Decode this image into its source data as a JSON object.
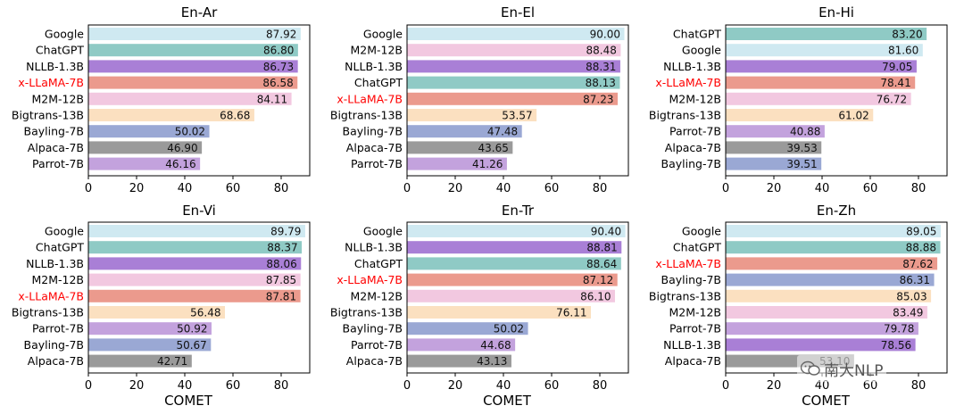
{
  "colors": {
    "Google": "#cfe9f1",
    "ChatGPT": "#8fcac5",
    "NLLB-1.3B": "#a97fd6",
    "x-LLaMA-7B": "#eb9a8d",
    "M2M-12B": "#f2c8e0",
    "Bigtrans-13B": "#fbe0c0",
    "Bayling-7B": "#9aa8d4",
    "Alpaca-7B": "#9a9a9a",
    "Parrot-7B": "#c3a2dd",
    "highlight_text": "#ff0000",
    "axis": "#000000"
  },
  "highlight_model": "x-LLaMA-7B",
  "watermark": {
    "text": "南大NLP",
    "icon": "wechat-icon"
  },
  "chart_data": [
    {
      "type": "bar",
      "orientation": "horizontal",
      "title": "En-Ar",
      "xlabel": "",
      "xlim": [
        0,
        90
      ],
      "xticks": [
        0,
        20,
        40,
        60,
        80
      ],
      "grid": false,
      "categories": [
        "Google",
        "ChatGPT",
        "NLLB-1.3B",
        "x-LLaMA-7B",
        "M2M-12B",
        "Bigtrans-13B",
        "Bayling-7B",
        "Alpaca-7B",
        "Parrot-7B"
      ],
      "values": [
        87.92,
        86.8,
        86.73,
        86.58,
        84.11,
        68.68,
        50.02,
        46.9,
        46.16
      ],
      "labels": [
        "87.92",
        "86.80",
        "86.73",
        "86.58",
        "84.11",
        "68.68",
        "50.02",
        "46.90",
        "46.16"
      ]
    },
    {
      "type": "bar",
      "orientation": "horizontal",
      "title": "En-El",
      "xlabel": "",
      "xlim": [
        0,
        90
      ],
      "xticks": [
        0,
        20,
        40,
        60,
        80
      ],
      "grid": false,
      "categories": [
        "Google",
        "M2M-12B",
        "NLLB-1.3B",
        "ChatGPT",
        "x-LLaMA-7B",
        "Bigtrans-13B",
        "Bayling-7B",
        "Alpaca-7B",
        "Parrot-7B"
      ],
      "values": [
        90.0,
        88.48,
        88.31,
        88.13,
        87.23,
        53.57,
        47.48,
        43.65,
        41.26
      ],
      "labels": [
        "90.00",
        "88.48",
        "88.31",
        "88.13",
        "87.23",
        "53.57",
        "47.48",
        "43.65",
        "41.26"
      ]
    },
    {
      "type": "bar",
      "orientation": "horizontal",
      "title": "En-Hi",
      "xlabel": "",
      "xlim": [
        0,
        90
      ],
      "xticks": [
        0,
        20,
        40,
        60,
        80
      ],
      "grid": false,
      "categories": [
        "ChatGPT",
        "Google",
        "NLLB-1.3B",
        "x-LLaMA-7B",
        "M2M-12B",
        "Bigtrans-13B",
        "Parrot-7B",
        "Alpaca-7B",
        "Bayling-7B"
      ],
      "values": [
        83.2,
        81.6,
        79.05,
        78.41,
        76.72,
        61.02,
        40.88,
        39.53,
        39.51
      ],
      "labels": [
        "83.20",
        "81.60",
        "79.05",
        "78.41",
        "76.72",
        "61.02",
        "40.88",
        "39.53",
        "39.51"
      ]
    },
    {
      "type": "bar",
      "orientation": "horizontal",
      "title": "En-Vi",
      "xlabel": "COMET",
      "xlim": [
        0,
        90
      ],
      "xticks": [
        0,
        20,
        40,
        60,
        80
      ],
      "grid": false,
      "categories": [
        "Google",
        "ChatGPT",
        "NLLB-1.3B",
        "M2M-12B",
        "x-LLaMA-7B",
        "Bigtrans-13B",
        "Parrot-7B",
        "Bayling-7B",
        "Alpaca-7B"
      ],
      "values": [
        89.79,
        88.37,
        88.06,
        87.85,
        87.81,
        56.48,
        50.92,
        50.67,
        42.71
      ],
      "labels": [
        "89.79",
        "88.37",
        "88.06",
        "87.85",
        "87.81",
        "56.48",
        "50.92",
        "50.67",
        "42.71"
      ]
    },
    {
      "type": "bar",
      "orientation": "horizontal",
      "title": "En-Tr",
      "xlabel": "COMET",
      "xlim": [
        0,
        90
      ],
      "xticks": [
        0,
        20,
        40,
        60,
        80
      ],
      "grid": false,
      "categories": [
        "Google",
        "NLLB-1.3B",
        "ChatGPT",
        "x-LLaMA-7B",
        "M2M-12B",
        "Bigtrans-13B",
        "Bayling-7B",
        "Parrot-7B",
        "Alpaca-7B"
      ],
      "values": [
        90.4,
        88.81,
        88.64,
        87.12,
        86.1,
        76.11,
        50.02,
        44.68,
        43.13
      ],
      "labels": [
        "90.40",
        "88.81",
        "88.64",
        "87.12",
        "86.10",
        "76.11",
        "50.02",
        "44.68",
        "43.13"
      ]
    },
    {
      "type": "bar",
      "orientation": "horizontal",
      "title": "En-Zh",
      "xlabel": "COMET",
      "xlim": [
        0,
        90
      ],
      "xticks": [
        0,
        20,
        40,
        60,
        80
      ],
      "grid": false,
      "categories": [
        "Google",
        "ChatGPT",
        "x-LLaMA-7B",
        "Bayling-7B",
        "Bigtrans-13B",
        "M2M-12B",
        "Parrot-7B",
        "NLLB-1.3B",
        "Alpaca-7B"
      ],
      "values": [
        89.05,
        88.88,
        87.62,
        86.31,
        85.03,
        83.49,
        79.78,
        78.56,
        53.1
      ],
      "labels": [
        "89.05",
        "88.88",
        "87.62",
        "86.31",
        "85.03",
        "83.49",
        "79.78",
        "78.56",
        "53.10"
      ]
    }
  ]
}
